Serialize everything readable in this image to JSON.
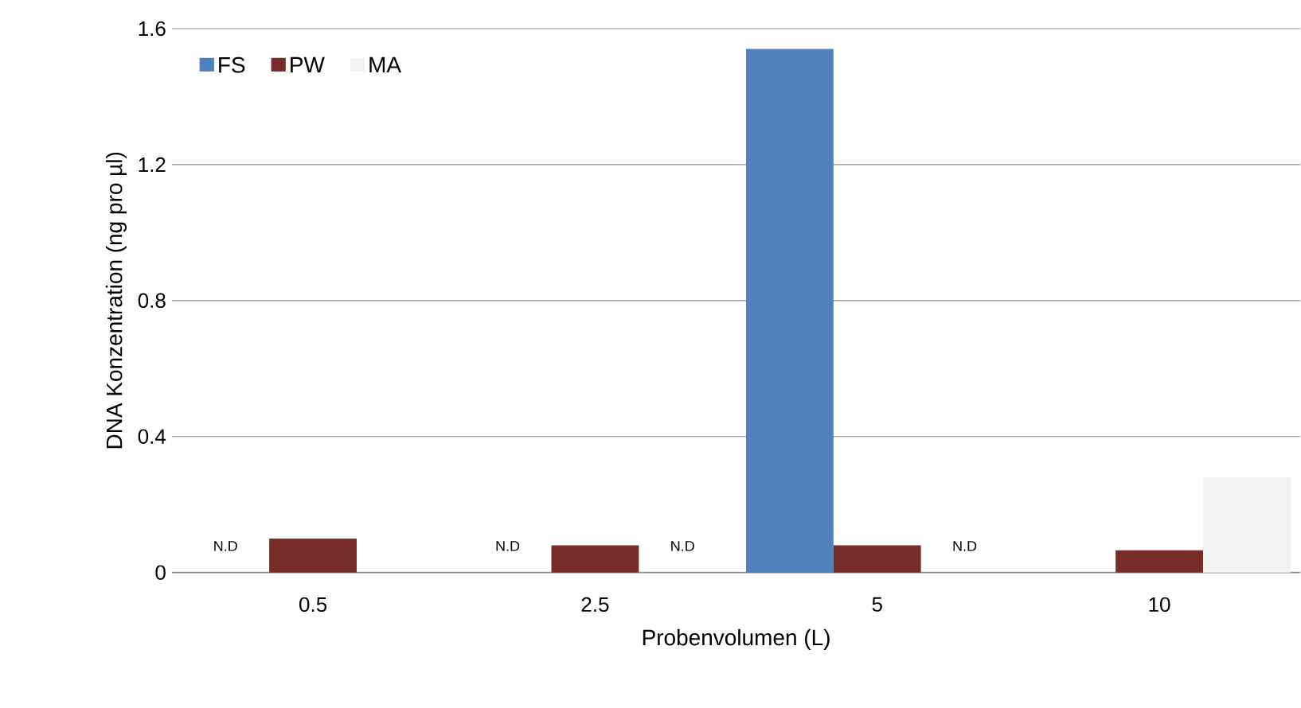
{
  "chart_data": {
    "type": "bar",
    "xlabel": "Probenvolumen (L)",
    "ylabel": "DNA Konzentration (ng pro µl)",
    "categories": [
      "0.5",
      "2.5",
      "5",
      "10"
    ],
    "series": [
      {
        "name": "FS",
        "color": "#4f81bd",
        "values": [
          null,
          null,
          1.54,
          null
        ],
        "value_labels": [
          "N.D",
          "N.D",
          null,
          null
        ]
      },
      {
        "name": "PW",
        "color": "#772c2a",
        "values": [
          0.1,
          0.08,
          0.08,
          0.065
        ]
      },
      {
        "name": "MA",
        "color": "#f2f2f2",
        "values": [
          null,
          null,
          null,
          0.28
        ],
        "value_labels": [
          null,
          "N.D",
          "N.D",
          null
        ]
      }
    ],
    "ylim": [
      0,
      1.6
    ],
    "yticks": [
      0,
      0.4,
      0.8,
      1.2,
      1.6
    ],
    "grid": "y",
    "legend": "top left"
  }
}
